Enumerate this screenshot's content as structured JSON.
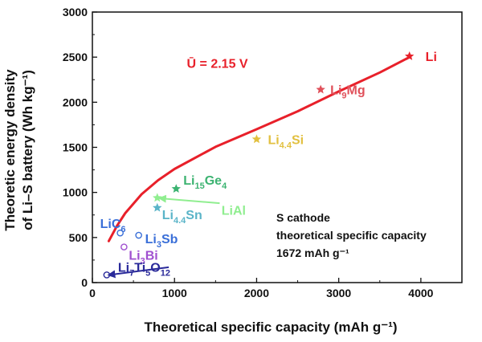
{
  "chart_data": {
    "type": "scatter",
    "title": "",
    "xlabel": "Theoretical specific capacity (mAh g⁻¹)",
    "ylabel_lines": [
      "Theoretic energy density",
      "of Li–S battery (Wh kg⁻¹)"
    ],
    "xlim": [
      0,
      4500
    ],
    "ylim": [
      0,
      3000
    ],
    "xticks": [
      0,
      1000,
      2000,
      3000,
      4000
    ],
    "yticks": [
      0,
      500,
      1000,
      1500,
      2000,
      2500,
      3000
    ],
    "grid": false,
    "curve": {
      "label": "Ū = 2.15 V",
      "color": "#e8202a",
      "x": [
        200,
        300,
        400,
        600,
        800,
        1000,
        1500,
        2000,
        2500,
        3000,
        3500,
        3861
      ],
      "y": [
        460,
        630,
        770,
        980,
        1135,
        1260,
        1505,
        1700,
        1900,
        2120,
        2330,
        2500
      ]
    },
    "points": [
      {
        "label": "Li",
        "x": 3861,
        "y": 2510,
        "marker": "star",
        "color": "#e8202a"
      },
      {
        "label": "Li9Mg",
        "parts": [
          [
            "Li",
            "n"
          ],
          [
            "9",
            "sub"
          ],
          [
            "Mg",
            "n"
          ]
        ],
        "x": 2780,
        "y": 2140,
        "marker": "star",
        "color": "#e0505a"
      },
      {
        "label": "Li4.4Si",
        "parts": [
          [
            "Li",
            "n"
          ],
          [
            "4.4",
            "sub"
          ],
          [
            "Si",
            "n"
          ]
        ],
        "x": 2000,
        "y": 1590,
        "marker": "star",
        "color": "#e2c040"
      },
      {
        "label": "Li15Ge4",
        "parts": [
          [
            "Li",
            "n"
          ],
          [
            "15",
            "sub"
          ],
          [
            "Ge",
            "n"
          ],
          [
            "4",
            "sub"
          ]
        ],
        "x": 1020,
        "y": 1040,
        "marker": "star",
        "color": "#3cb371"
      },
      {
        "label": "LiAl",
        "parts": [
          [
            "LiAl",
            "n"
          ]
        ],
        "x": 790,
        "y": 940,
        "marker": "star",
        "color": "#90ee90"
      },
      {
        "label": "Li4.4Sn",
        "parts": [
          [
            "Li",
            "n"
          ],
          [
            "4.4",
            "sub"
          ],
          [
            "Sn",
            "n"
          ]
        ],
        "x": 790,
        "y": 830,
        "marker": "star",
        "color": "#5ab4c8"
      },
      {
        "label": "LiC6",
        "parts": [
          [
            "LiC",
            "n"
          ],
          [
            "6",
            "sub"
          ]
        ],
        "x": 339,
        "y": 550,
        "marker": "circle",
        "color": "#3a6fd8"
      },
      {
        "label": "Li3Sb",
        "parts": [
          [
            "Li",
            "n"
          ],
          [
            "3",
            "sub"
          ],
          [
            "Sb",
            "n"
          ]
        ],
        "x": 564,
        "y": 525,
        "marker": "circle",
        "color": "#3a6fd8"
      },
      {
        "label": "Li3Bi",
        "parts": [
          [
            "Li",
            "n"
          ],
          [
            "3",
            "sub"
          ],
          [
            "Bi",
            "n"
          ]
        ],
        "x": 385,
        "y": 395,
        "marker": "circle",
        "color": "#a050d0"
      },
      {
        "label": "Li7Ti5O12",
        "parts": [
          [
            "Li",
            "n"
          ],
          [
            "7",
            "sub"
          ],
          [
            "Ti",
            "n"
          ],
          [
            "5",
            "sub"
          ],
          [
            "O",
            "n"
          ],
          [
            "12",
            "sub"
          ]
        ],
        "x": 175,
        "y": 85,
        "marker": "circle",
        "color": "#2a2a9a"
      }
    ],
    "annotation": {
      "lines": [
        "S cathode",
        "theoretical specific capacity",
        "1672 mAh g⁻¹"
      ]
    }
  }
}
